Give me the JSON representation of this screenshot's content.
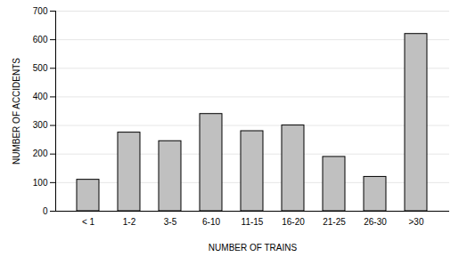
{
  "chart_data": {
    "type": "bar",
    "xlabel": "NUMBER OF TRAINS",
    "ylabel": "NUMBER OF ACCIDENTS",
    "categories": [
      "< 1",
      "1-2",
      "3-5",
      "6-10",
      "11-15",
      "16-20",
      "21-25",
      "26-30",
      ">30"
    ],
    "values": [
      110,
      275,
      245,
      340,
      280,
      300,
      190,
      120,
      620
    ],
    "color": "#c0c0c0",
    "ylim": [
      0,
      700
    ],
    "yticks": [
      0,
      100,
      200,
      300,
      400,
      500,
      600,
      700
    ],
    "grid": true
  }
}
